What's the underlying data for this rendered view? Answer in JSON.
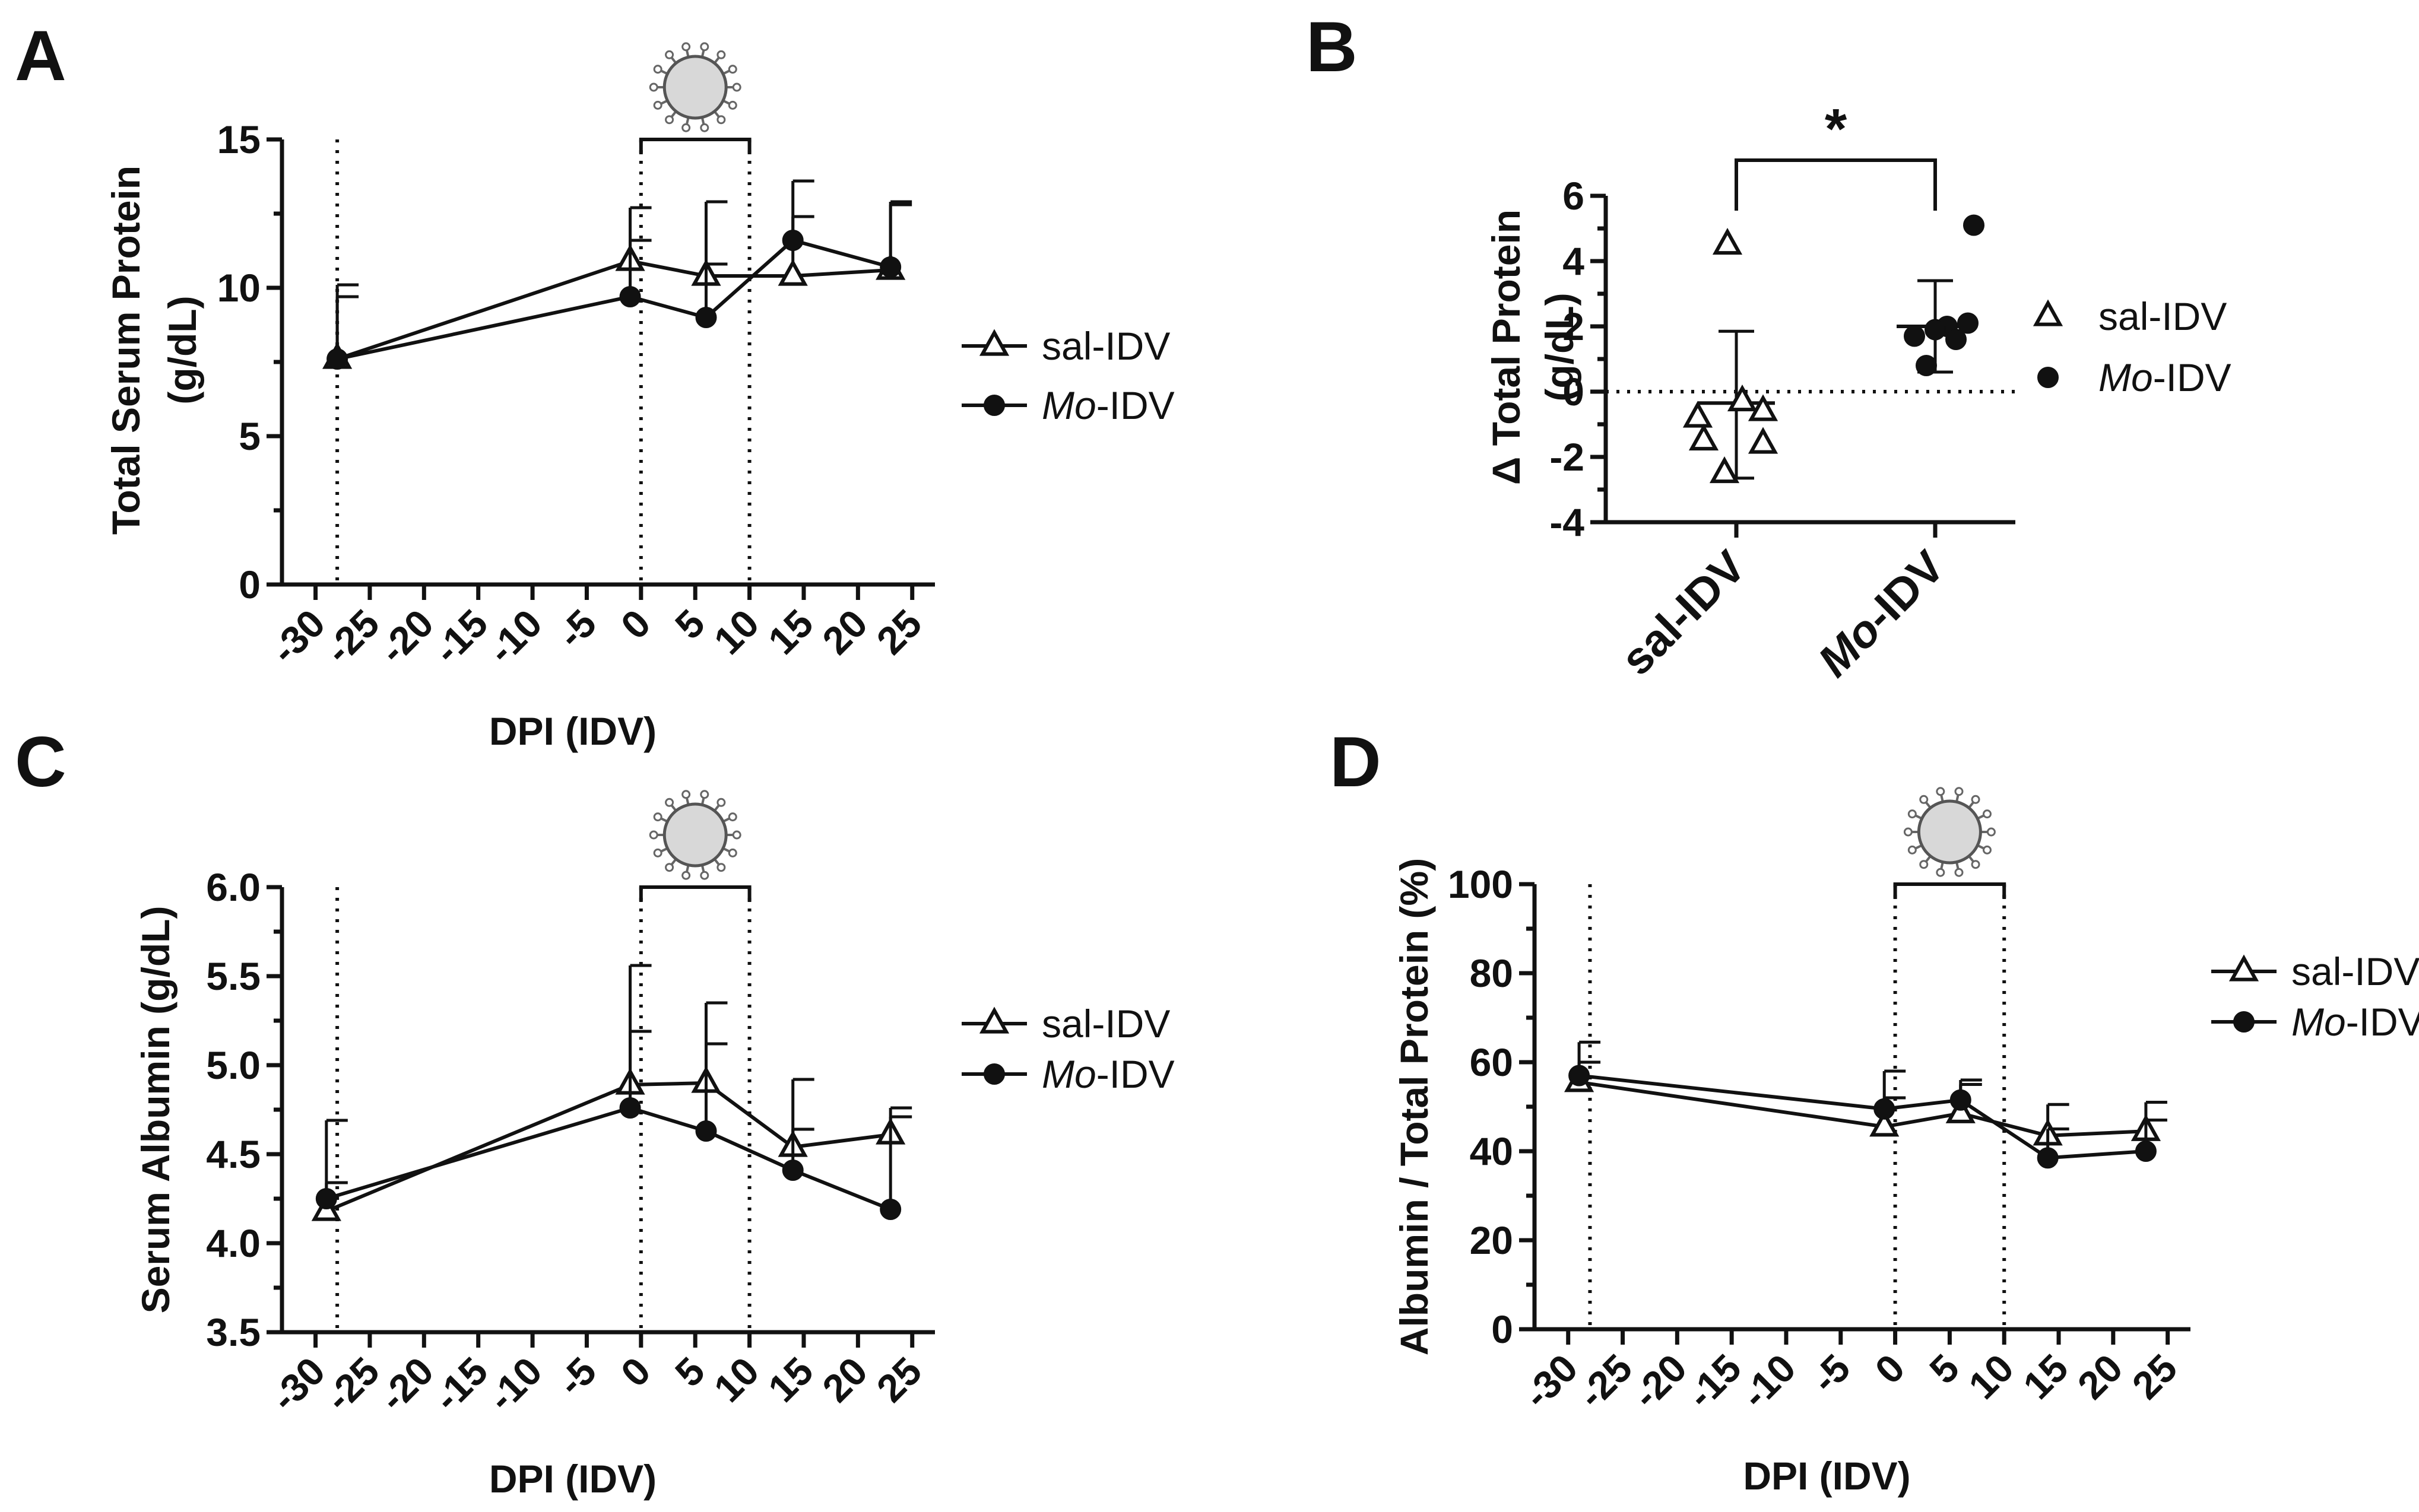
{
  "chart_data": [
    {
      "id": "A",
      "panel_label": "A",
      "type": "line",
      "ylabel": [
        "Total  Serum  Protein",
        "(g/dL)"
      ],
      "xlabel": "DPI (IDV)",
      "xlim": [
        -32,
        26
      ],
      "ylim": [
        0,
        15
      ],
      "xticks": [
        -30,
        -25,
        -20,
        -15,
        -10,
        -5,
        0,
        5,
        10,
        15,
        20,
        25
      ],
      "yticks": [
        0,
        5,
        10,
        15
      ],
      "ytick_labels": [
        "0",
        "5",
        "10",
        "15"
      ],
      "ref_lines": [
        -28,
        0,
        10
      ],
      "infection_window": [
        0,
        10
      ],
      "series": [
        {
          "name": "sal-IDV",
          "marker": "triangle-open",
          "x": [
            -28,
            -1,
            6,
            14,
            23
          ],
          "y": [
            7.6,
            10.9,
            10.4,
            10.4,
            10.6
          ],
          "err_upper": [
            10.1,
            11.6,
            10.8,
            12.4,
            12.9
          ]
        },
        {
          "name": "Mo-IDV",
          "marker": "circle-filled",
          "x": [
            -28,
            -1,
            6,
            14,
            23
          ],
          "y": [
            7.6,
            9.7,
            9.0,
            11.6,
            10.7
          ],
          "err_upper": [
            9.7,
            12.7,
            12.9,
            13.6,
            12.8
          ]
        }
      ],
      "legend": [
        {
          "prefix": "",
          "text": "sal-IDV",
          "marker": "triangle-open"
        },
        {
          "prefix": "Mo",
          "text": "-IDV",
          "marker": "circle-filled"
        }
      ]
    },
    {
      "id": "B",
      "panel_label": "B",
      "type": "scatter",
      "ylabel": [
        "Δ Total Protein",
        "(g/dL)"
      ],
      "categories": [
        "sal-IDV",
        "Mo-IDV"
      ],
      "category_labels": [
        {
          "prefix": "",
          "text": "sal-IDV"
        },
        {
          "prefix": "Mo",
          "text": "-IDV"
        }
      ],
      "ylim": [
        -4,
        6
      ],
      "yticks": [
        -4,
        -2,
        0,
        2,
        4,
        6
      ],
      "ytick_labels": [
        "-4",
        "-2",
        "0",
        "2",
        "4",
        "6"
      ],
      "points": {
        "sal-IDV": [
          4.5,
          -0.3,
          -0.6,
          -0.8,
          -1.5,
          -1.6,
          -2.5
        ],
        "Mo-IDV": [
          5.1,
          2.1,
          2.0,
          1.9,
          1.7,
          1.6,
          0.8
        ]
      },
      "means": [
        -0.35,
        2.0
      ],
      "sd_upper": [
        1.85,
        3.4
      ],
      "sd_lower": [
        -2.65,
        0.6
      ],
      "significance": "*",
      "legend": [
        {
          "prefix": "",
          "text": "sal-IDV",
          "marker": "triangle-open"
        },
        {
          "prefix": "Mo",
          "text": "-IDV",
          "marker": "circle-filled"
        }
      ]
    },
    {
      "id": "C",
      "panel_label": "C",
      "type": "line",
      "ylabel": [
        "Serum  Albumin (g/dL)"
      ],
      "xlabel": "DPI (IDV)",
      "xlim": [
        -32,
        26
      ],
      "ylim": [
        3.5,
        6.0
      ],
      "xticks": [
        -30,
        -25,
        -20,
        -15,
        -10,
        -5,
        0,
        5,
        10,
        15,
        20,
        25
      ],
      "yticks": [
        3.5,
        4.0,
        4.5,
        5.0,
        5.5,
        6.0
      ],
      "ytick_labels": [
        "3.5",
        "4.0",
        "4.5",
        "5.0",
        "5.5",
        "6.0"
      ],
      "ref_lines": [
        -28,
        0,
        10
      ],
      "infection_window": [
        0,
        10
      ],
      "series": [
        {
          "name": "sal-IDV",
          "marker": "triangle-open",
          "x": [
            -29,
            -1,
            6,
            14,
            23
          ],
          "y": [
            4.18,
            4.89,
            4.9,
            4.54,
            4.61
          ],
          "err_upper": [
            4.69,
            5.19,
            5.12,
            4.92,
            4.71
          ]
        },
        {
          "name": "Mo-IDV",
          "marker": "circle-filled",
          "x": [
            -29,
            -1,
            6,
            14,
            23
          ],
          "y": [
            4.25,
            4.76,
            4.63,
            4.41,
            4.19
          ],
          "err_upper": [
            4.34,
            5.56,
            5.35,
            4.64,
            4.76
          ]
        }
      ],
      "legend": [
        {
          "prefix": "",
          "text": "sal-IDV",
          "marker": "triangle-open"
        },
        {
          "prefix": "Mo",
          "text": "-IDV",
          "marker": "circle-filled"
        }
      ]
    },
    {
      "id": "D",
      "panel_label": "D",
      "type": "line",
      "ylabel": [
        "Albumin / Total Protein (%)"
      ],
      "xlabel": "DPI (IDV)",
      "xlim": [
        -32,
        26
      ],
      "ylim": [
        0,
        100
      ],
      "xticks": [
        -30,
        -25,
        -20,
        -15,
        -10,
        -5,
        0,
        5,
        10,
        15,
        20,
        25
      ],
      "yticks": [
        0,
        20,
        40,
        60,
        80,
        100
      ],
      "ytick_labels": [
        "0",
        "20",
        "40",
        "60",
        "80",
        "100"
      ],
      "ref_lines": [
        -28,
        0,
        10
      ],
      "infection_window": [
        0,
        10
      ],
      "series": [
        {
          "name": "sal-IDV",
          "marker": "triangle-open",
          "x": [
            -29,
            -1,
            6,
            14,
            23
          ],
          "y": [
            55.5,
            45.5,
            48.5,
            43.5,
            44.5
          ],
          "err_upper": [
            64.5,
            52,
            55,
            50.5,
            51
          ]
        },
        {
          "name": "Mo-IDV",
          "marker": "circle-filled",
          "x": [
            -29,
            -1,
            6,
            14,
            23
          ],
          "y": [
            57,
            49.5,
            51.5,
            38.5,
            40
          ],
          "err_upper": [
            60,
            58,
            56,
            45,
            47
          ]
        }
      ],
      "legend": [
        {
          "prefix": "",
          "text": "sal-IDV",
          "marker": "triangle-open"
        },
        {
          "prefix": "Mo",
          "text": "-IDV",
          "marker": "circle-filled"
        }
      ]
    }
  ]
}
